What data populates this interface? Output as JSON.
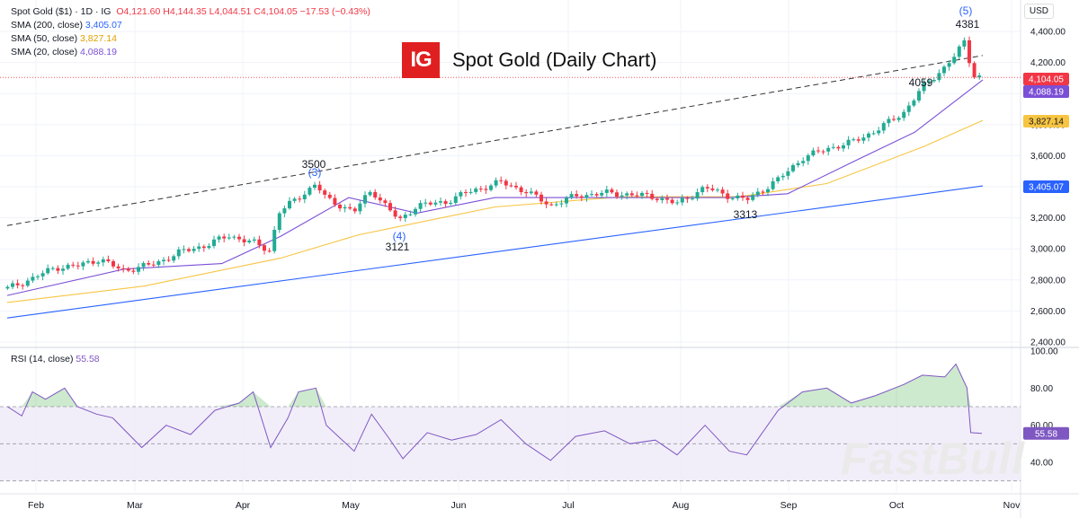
{
  "legend": {
    "symbol": "Spot Gold ($1) · 1D · IG",
    "ohlc": "O4,121.60  H4,144.35  L4,044.51  C4,104.05  −17.53 (−0.43%)",
    "sma200_label": "SMA (200, close)",
    "sma200_value": "3,405.07",
    "sma50_label": "SMA (50, close)",
    "sma50_value": "3,827.14",
    "sma20_label": "SMA (20, close)",
    "sma20_value": "4,088.19"
  },
  "title": {
    "logo": "IG",
    "text": "Spot Gold (Daily Chart)"
  },
  "currency": "USD",
  "rsi_legend": {
    "label": "RSI (14, close)",
    "value": "55.58"
  },
  "watermark": "FastBull",
  "colors": {
    "up": "#22ab94",
    "down": "#f23645",
    "sma200": "#2962ff",
    "sma50": "#f7c542",
    "sma20": "#7b4fd6",
    "rsi": "#7e57c2",
    "rsi_band": "#ede7f6"
  },
  "chart_data": [
    {
      "type": "line",
      "title": "Spot Gold (Daily Chart)",
      "x_ticks": [
        "Feb",
        "Mar",
        "Apr",
        "May",
        "Jun",
        "Jul",
        "Aug",
        "Sep",
        "Oct",
        "Nov"
      ],
      "y_ticks": [
        "4,400.00",
        "4,200.00",
        "4,000.00",
        "3,800.00",
        "3,600.00",
        "3,400.00",
        "3,200.00",
        "3,000.00",
        "2,800.00",
        "2,600.00",
        "2,400.00"
      ],
      "ylim": [
        2400,
        4400
      ],
      "price_series": {
        "name": "Spot Gold ($1) · 1D · IG",
        "points": [
          [
            "Jan 24",
            2745
          ],
          [
            "Jan 31",
            2810
          ],
          [
            "Feb 7",
            2880
          ],
          [
            "Feb 14",
            2890
          ],
          [
            "Feb 21",
            2935
          ],
          [
            "Feb 28",
            2860
          ],
          [
            "Mar 7",
            2905
          ],
          [
            "Mar 14",
            2980
          ],
          [
            "Mar 21",
            3020
          ],
          [
            "Mar 28",
            3085
          ],
          [
            "Apr 4",
            3040
          ],
          [
            "Apr 9",
            2985
          ],
          [
            "Apr 11",
            3230
          ],
          [
            "Apr 17",
            3330
          ],
          [
            "Apr 22",
            3420
          ],
          [
            "Apr 25",
            3320
          ],
          [
            "May 2",
            3240
          ],
          [
            "May 7",
            3380
          ],
          [
            "May 15",
            3180
          ],
          [
            "May 20",
            3280
          ],
          [
            "May 28",
            3300
          ],
          [
            "Jun 3",
            3360
          ],
          [
            "Jun 13",
            3430
          ],
          [
            "Jun 20",
            3370
          ],
          [
            "Jun 27",
            3280
          ],
          [
            "Jul 3",
            3340
          ],
          [
            "Jul 11",
            3360
          ],
          [
            "Jul 18",
            3350
          ],
          [
            "Jul 25",
            3335
          ],
          [
            "Jul 31",
            3290
          ],
          [
            "Aug 8",
            3395
          ],
          [
            "Aug 15",
            3340
          ],
          [
            "Aug 20",
            3315
          ],
          [
            "Aug 29",
            3445
          ],
          [
            "Sep 5",
            3585
          ],
          [
            "Sep 12",
            3645
          ],
          [
            "Sep 19",
            3685
          ],
          [
            "Sep 26",
            3760
          ],
          [
            "Oct 3",
            3880
          ],
          [
            "Oct 8",
            4040
          ],
          [
            "Oct 14",
            4170
          ],
          [
            "Oct 17",
            4250
          ],
          [
            "Oct 20",
            4360
          ],
          [
            "Oct 21",
            4125
          ],
          [
            "Oct 24",
            4104.05
          ]
        ]
      },
      "series": [
        {
          "name": "SMA (200, close)",
          "values": [
            [
              0,
              2555
            ],
            [
              1,
              3405.07
            ]
          ]
        },
        {
          "name": "SMA (50, close)",
          "values": [
            [
              0,
              2655
            ],
            [
              0.14,
              2760
            ],
            [
              0.28,
              2940
            ],
            [
              0.36,
              3090
            ],
            [
              0.5,
              3270
            ],
            [
              0.63,
              3335
            ],
            [
              0.75,
              3335
            ],
            [
              0.84,
              3420
            ],
            [
              0.94,
              3660
            ],
            [
              1,
              3827.14
            ]
          ]
        },
        {
          "name": "SMA (20, close)",
          "values": [
            [
              0,
              2700
            ],
            [
              0.12,
              2870
            ],
            [
              0.22,
              2905
            ],
            [
              0.28,
              3080
            ],
            [
              0.35,
              3330
            ],
            [
              0.42,
              3230
            ],
            [
              0.5,
              3330
            ],
            [
              0.6,
              3330
            ],
            [
              0.74,
              3330
            ],
            [
              0.8,
              3355
            ],
            [
              0.87,
              3570
            ],
            [
              0.93,
              3750
            ],
            [
              0.99,
              4040
            ],
            [
              1,
              4088.19
            ]
          ]
        }
      ],
      "trendline": [
        [
          0,
          3150
        ],
        [
          1,
          4245
        ]
      ],
      "annotations": [
        "3500",
        "(3)",
        "3121",
        "(4)",
        "3313",
        "4059",
        "4381",
        "(5)"
      ],
      "price_labels": [
        "4,104.05",
        "4,088.19",
        "3,827.14",
        "3,405.07"
      ]
    },
    {
      "type": "line",
      "title": "RSI (14, close)",
      "y_ticks": [
        "100.00",
        "80.00",
        "60.00",
        "40.00"
      ],
      "ylim": [
        28,
        100
      ],
      "bands": [
        70,
        50,
        30
      ],
      "last_value": "55.58",
      "points": [
        [
          "Jan 24",
          70
        ],
        [
          "Jan 28",
          65
        ],
        [
          "Jan 31",
          78
        ],
        [
          "Feb 4",
          74
        ],
        [
          "Feb 10",
          80
        ],
        [
          "Feb 14",
          70
        ],
        [
          "Feb 20",
          66
        ],
        [
          "Feb 25",
          64
        ],
        [
          "Mar 3",
          48
        ],
        [
          "Mar 10",
          60
        ],
        [
          "Mar 17",
          55
        ],
        [
          "Mar 24",
          68
        ],
        [
          "Mar 31",
          72
        ],
        [
          "Apr 4",
          78
        ],
        [
          "Apr 9",
          48
        ],
        [
          "Apr 14",
          64
        ],
        [
          "Apr 17",
          78
        ],
        [
          "Apr 22",
          80
        ],
        [
          "Apr 25",
          60
        ],
        [
          "May 2",
          46
        ],
        [
          "May 7",
          66
        ],
        [
          "May 12",
          53
        ],
        [
          "May 16",
          42
        ],
        [
          "May 23",
          56
        ],
        [
          "May 30",
          52
        ],
        [
          "Jun 6",
          55
        ],
        [
          "Jun 13",
          63
        ],
        [
          "Jun 20",
          50
        ],
        [
          "Jun 27",
          41
        ],
        [
          "Jul 3",
          54
        ],
        [
          "Jul 11",
          57
        ],
        [
          "Jul 18",
          50
        ],
        [
          "Jul 25",
          52
        ],
        [
          "Jul 31",
          44
        ],
        [
          "Aug 8",
          60
        ],
        [
          "Aug 15",
          46
        ],
        [
          "Aug 20",
          44
        ],
        [
          "Aug 29",
          68
        ],
        [
          "Sep 5",
          78
        ],
        [
          "Sep 12",
          80
        ],
        [
          "Sep 19",
          72
        ],
        [
          "Sep 26",
          76
        ],
        [
          "Oct 3",
          82
        ],
        [
          "Oct 8",
          87
        ],
        [
          "Oct 14",
          86
        ],
        [
          "Oct 17",
          93
        ],
        [
          "Oct 20",
          80
        ],
        [
          "Oct 21",
          56
        ],
        [
          "Oct 24",
          55.58
        ]
      ]
    }
  ]
}
